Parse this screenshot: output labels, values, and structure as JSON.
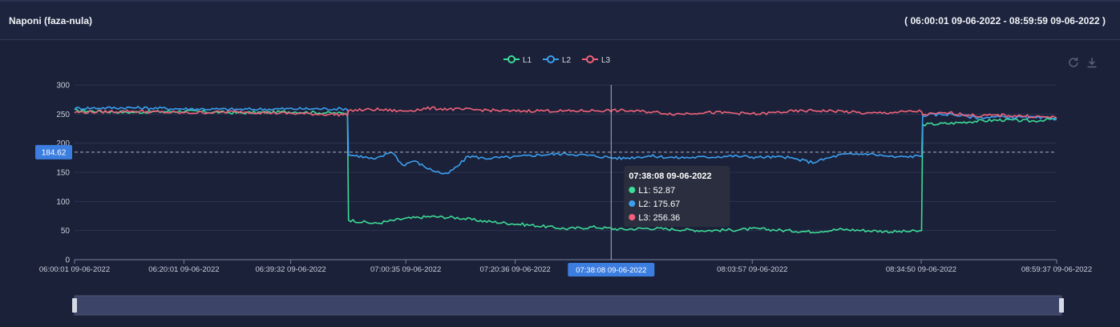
{
  "header": {
    "title": "Naponi (faza-nula)",
    "range": "( 06:00:01 09-06-2022 - 08:59:59 09-06-2022 )"
  },
  "toolbox": {
    "refresh_icon": "refresh-icon",
    "download_icon": "download-icon"
  },
  "chart_data": {
    "type": "line",
    "x_labels": [
      {
        "t": 0.0,
        "label": "06:00:01 09-06-2022"
      },
      {
        "t": 20.0,
        "label": "06:20:01 09-06-2022"
      },
      {
        "t": 39.52,
        "label": "06:39:32 09-06-2022"
      },
      {
        "t": 60.57,
        "label": "07:00:35 09-06-2022"
      },
      {
        "t": 80.58,
        "label": "07:20:36 09-06-2022"
      },
      {
        "t": 123.93,
        "label": "08:03:57 09-06-2022"
      },
      {
        "t": 154.82,
        "label": "08:34:50 09-06-2022"
      },
      {
        "t": 179.6,
        "label": "08:59:37 09-06-2022"
      }
    ],
    "x_range_minutes": [
      0,
      179.6
    ],
    "ylim": [
      0,
      300
    ],
    "yticks": [
      0,
      50,
      100,
      150,
      200,
      250,
      300
    ],
    "grid": true,
    "legend_position": "top",
    "series": [
      {
        "name": "L1",
        "color": "#3ddc97",
        "x": [
          0,
          10,
          20,
          30,
          40,
          49.9,
          50.1,
          55,
          60,
          65,
          70,
          75,
          80,
          85,
          90,
          95,
          100,
          105,
          110,
          115,
          120,
          125,
          130,
          135,
          140,
          145,
          150,
          154.9,
          155.1,
          160,
          165,
          170,
          175,
          179.6
        ],
        "y": [
          256,
          253,
          255,
          252,
          254,
          251,
          68,
          62,
          70,
          74,
          72,
          66,
          62,
          58,
          53,
          56,
          52,
          54,
          52,
          50,
          51,
          53,
          50,
          48,
          52,
          50,
          48,
          49,
          232,
          234,
          238,
          240,
          238,
          242
        ]
      },
      {
        "name": "L2",
        "color": "#3a9ff0",
        "x": [
          0,
          10,
          20,
          30,
          40,
          49.9,
          50.1,
          52,
          55,
          58,
          60,
          62,
          65,
          68,
          70,
          72,
          75,
          80,
          85,
          90,
          95,
          100,
          105,
          110,
          115,
          120,
          125,
          130,
          135,
          140,
          145,
          150,
          154.9,
          155.1,
          160,
          165,
          170,
          175,
          179.6
        ],
        "y": [
          260,
          261,
          259,
          258,
          259,
          259,
          180,
          178,
          172,
          186,
          162,
          170,
          155,
          146,
          160,
          178,
          174,
          176,
          180,
          182,
          178,
          174,
          178,
          175,
          176,
          178,
          176,
          176,
          167,
          180,
          182,
          176,
          178,
          248,
          250,
          244,
          245,
          244,
          242
        ]
      },
      {
        "name": "L3",
        "color": "#f0627a",
        "x": [
          0,
          10,
          20,
          30,
          40,
          49.9,
          50.1,
          55,
          60,
          65,
          70,
          75,
          80,
          85,
          90,
          95,
          100,
          105,
          110,
          115,
          120,
          125,
          130,
          135,
          140,
          145,
          150,
          154.9,
          155.1,
          160,
          165,
          170,
          175,
          179.6
        ],
        "y": [
          253,
          255,
          252,
          254,
          251,
          249,
          256,
          258,
          255,
          260,
          258,
          257,
          255,
          256,
          255,
          256,
          256,
          254,
          250,
          253,
          252,
          250,
          254,
          256,
          255,
          251,
          253,
          255,
          249,
          252,
          247,
          248,
          246,
          244
        ]
      }
    ],
    "crosshair": {
      "t": 98.13,
      "label": "07:38:08 09-06-2022",
      "y_value": 184.62,
      "y_label": "184.62"
    },
    "tooltip": {
      "title": "07:38:08 09-06-2022",
      "items": [
        {
          "name": "L1",
          "value": "52.87",
          "color": "#3ddc97"
        },
        {
          "name": "L2",
          "value": "175.67",
          "color": "#3a9ff0"
        },
        {
          "name": "L3",
          "value": "256.36",
          "color": "#f0627a"
        }
      ]
    },
    "datazoom": {
      "start_percent": 0,
      "end_percent": 100
    }
  }
}
